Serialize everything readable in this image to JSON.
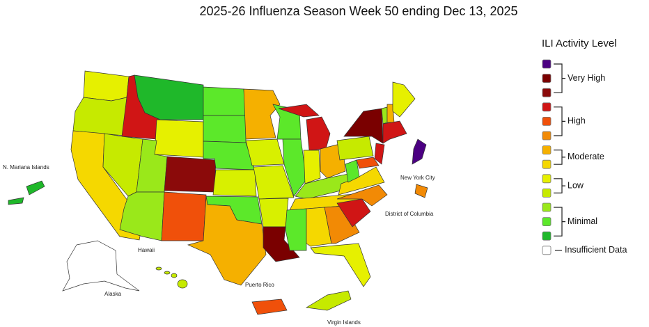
{
  "title": "2025-26 Influenza Season Week 50 ending Dec 13, 2025",
  "legend": {
    "title": "ILI Activity Level",
    "colors": [
      "#4b0082",
      "#7a0000",
      "#8b0a0a",
      "#d01515",
      "#f0500a",
      "#f28a05",
      "#f5b000",
      "#f5d800",
      "#e6f000",
      "#c6ea00",
      "#9ae81a",
      "#5ce82a",
      "#1fb82a",
      "#ffffff"
    ],
    "groups": [
      "Very High",
      "High",
      "Moderate",
      "Low",
      "Minimal"
    ],
    "insufficient": "Insufficient Data"
  },
  "places": {
    "mariana": "N. Mariana Islands",
    "nyc": "New York City",
    "dc": "District of Columbia",
    "hawaii": "Hawaii",
    "alaska": "Alaska",
    "puerto_rico": "Puerto Rico",
    "virgin_islands": "Virgin Islands"
  }
}
